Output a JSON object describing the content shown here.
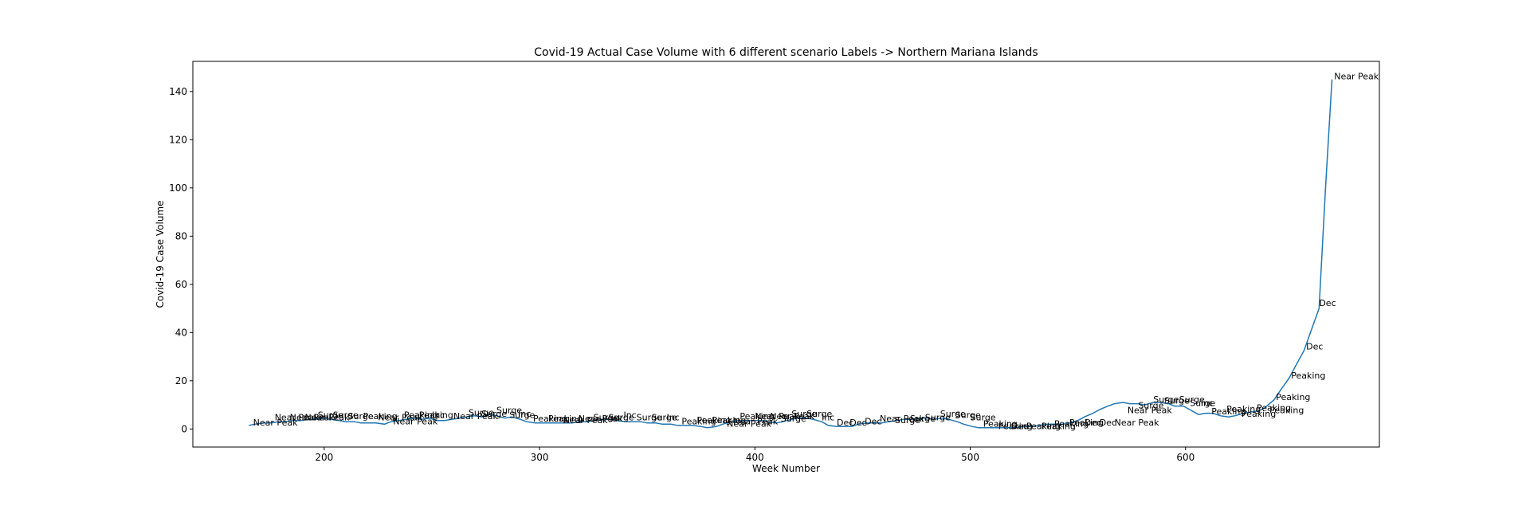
{
  "chart_data": {
    "type": "line",
    "title": "Covid-19 Actual Case Volume with 6 different scenario Labels  -> Northern Mariana Islands",
    "xlabel": "Week Number",
    "ylabel": "Covid-19 Case Volume",
    "xlim": [
      139,
      690
    ],
    "ylim": [
      -7.5,
      152.5
    ],
    "xticks": [
      200,
      300,
      400,
      500,
      600
    ],
    "yticks": [
      0,
      20,
      40,
      60,
      80,
      100,
      120,
      140
    ],
    "grid": false,
    "line_color": "#1f77b4",
    "series": [
      {
        "x": [
          165,
          168,
          172,
          175,
          179,
          182,
          186,
          189,
          193,
          196,
          200,
          203,
          207,
          210,
          214,
          217,
          221,
          224,
          228,
          231,
          235,
          238,
          242,
          245,
          249,
          252,
          256,
          259,
          263,
          266,
          270,
          273,
          277,
          280,
          284,
          287,
          291,
          294,
          298,
          301,
          305,
          308,
          312,
          315,
          319,
          322,
          326,
          329,
          333,
          336,
          340,
          343,
          347,
          350,
          354,
          357,
          361,
          364,
          368,
          371,
          375,
          378,
          382,
          385,
          389,
          392,
          396,
          399,
          403,
          406,
          410,
          413,
          417,
          420,
          424,
          427,
          431,
          434,
          438,
          441,
          445,
          448,
          452,
          455,
          459,
          462,
          466,
          469,
          473,
          476,
          480,
          483,
          487,
          490,
          494,
          497,
          501,
          504,
          508,
          511,
          515,
          518,
          522,
          525,
          529,
          532,
          536,
          539,
          543,
          546,
          550,
          553,
          557,
          560,
          564,
          567,
          571,
          574,
          578,
          581,
          585,
          588,
          592,
          595,
          599,
          602,
          606,
          609,
          613,
          616,
          620,
          623,
          627,
          630,
          634,
          637,
          641,
          644,
          648,
          651,
          655,
          658,
          662,
          665,
          668
        ],
        "y": [
          1.5,
          2.0,
          2.5,
          2.5,
          3.0,
          3.0,
          3.5,
          3.5,
          4.0,
          4.0,
          4.5,
          4.0,
          3.5,
          3.0,
          3.0,
          2.5,
          2.5,
          2.5,
          2.0,
          3.0,
          3.5,
          4.0,
          4.5,
          4.0,
          4.5,
          3.5,
          3.5,
          4.0,
          4.5,
          5.0,
          5.5,
          5.0,
          6.0,
          5.5,
          4.5,
          5.0,
          4.0,
          3.0,
          2.5,
          2.5,
          2.5,
          2.5,
          2.5,
          2.5,
          3.0,
          3.0,
          3.5,
          4.0,
          4.0,
          3.5,
          3.0,
          3.0,
          3.0,
          2.5,
          2.5,
          2.0,
          2.0,
          1.5,
          1.5,
          1.5,
          1.0,
          0.5,
          1.0,
          2.0,
          3.0,
          3.5,
          3.5,
          3.5,
          3.5,
          3.0,
          2.5,
          3.0,
          4.0,
          4.5,
          4.5,
          4.0,
          3.0,
          1.5,
          1.0,
          1.0,
          1.0,
          2.0,
          2.5,
          2.5,
          2.5,
          3.0,
          3.5,
          4.0,
          4.0,
          4.5,
          4.5,
          4.0,
          4.5,
          4.0,
          3.0,
          2.0,
          1.0,
          0.5,
          0.5,
          0.5,
          0.5,
          0.5,
          0.5,
          1.0,
          1.0,
          1.5,
          2.0,
          2.0,
          2.0,
          2.5,
          3.5,
          5.0,
          6.5,
          8.0,
          9.5,
          10.5,
          11.0,
          10.5,
          10.5,
          10.0,
          11.0,
          11.0,
          10.5,
          9.5,
          9.5,
          8.0,
          6.0,
          6.5,
          6.5,
          5.5,
          5.0,
          5.5,
          6.5,
          7.0,
          7.5,
          9.0,
          12.0,
          16.0,
          21.0,
          26.0,
          32.5,
          40.0,
          50.0,
          100.0,
          145.0
        ]
      }
    ],
    "annotations": [
      {
        "x": 167,
        "y": 1.5,
        "text": "Near Peak"
      },
      {
        "x": 177,
        "y": 3.5,
        "text": "Near Peak"
      },
      {
        "x": 184,
        "y": 3.5,
        "text": "Near Peak"
      },
      {
        "x": 191,
        "y": 3.5,
        "text": "Near Peak"
      },
      {
        "x": 197,
        "y": 4.5,
        "text": "Surge"
      },
      {
        "x": 204,
        "y": 4.5,
        "text": "Surge"
      },
      {
        "x": 211,
        "y": 4.0,
        "text": "Surge"
      },
      {
        "x": 218,
        "y": 4.0,
        "text": "Peaking"
      },
      {
        "x": 225,
        "y": 3.5,
        "text": "Near Peak"
      },
      {
        "x": 232,
        "y": 2.0,
        "text": "Near Peak"
      },
      {
        "x": 237,
        "y": 4.5,
        "text": "Peaking"
      },
      {
        "x": 244,
        "y": 4.5,
        "text": "Peaking"
      },
      {
        "x": 250,
        "y": 4.5,
        "text": "Inc"
      },
      {
        "x": 260,
        "y": 4.0,
        "text": "Near Peak"
      },
      {
        "x": 267,
        "y": 5.5,
        "text": "Surge"
      },
      {
        "x": 273,
        "y": 5.0,
        "text": "Surge"
      },
      {
        "x": 280,
        "y": 6.5,
        "text": "Surge"
      },
      {
        "x": 286,
        "y": 4.5,
        "text": "Surge"
      },
      {
        "x": 290,
        "y": 5.0,
        "text": "Inc"
      },
      {
        "x": 297,
        "y": 3.0,
        "text": "Peaking"
      },
      {
        "x": 304,
        "y": 3.0,
        "text": "Peaking"
      },
      {
        "x": 311,
        "y": 2.5,
        "text": "Near Peak"
      },
      {
        "x": 318,
        "y": 3.0,
        "text": "Near Peak"
      },
      {
        "x": 325,
        "y": 3.5,
        "text": "Surge"
      },
      {
        "x": 332,
        "y": 3.5,
        "text": "Surge"
      },
      {
        "x": 339,
        "y": 4.5,
        "text": "Inc"
      },
      {
        "x": 345,
        "y": 3.5,
        "text": "Surge"
      },
      {
        "x": 352,
        "y": 3.5,
        "text": "Surge"
      },
      {
        "x": 359,
        "y": 3.5,
        "text": "Inc"
      },
      {
        "x": 366,
        "y": 2.0,
        "text": "Peaking"
      },
      {
        "x": 373,
        "y": 2.5,
        "text": "Peaking"
      },
      {
        "x": 380,
        "y": 2.5,
        "text": "Peaking"
      },
      {
        "x": 387,
        "y": 1.0,
        "text": "Near Peak"
      },
      {
        "x": 390,
        "y": 2.0,
        "text": "Near Peak"
      },
      {
        "x": 393,
        "y": 4.0,
        "text": "Peaking"
      },
      {
        "x": 400,
        "y": 4.0,
        "text": "Near Peak"
      },
      {
        "x": 407,
        "y": 4.0,
        "text": "Near Peak"
      },
      {
        "x": 412,
        "y": 3.0,
        "text": "Surge"
      },
      {
        "x": 417,
        "y": 5.0,
        "text": "Surge"
      },
      {
        "x": 424,
        "y": 5.0,
        "text": "Surge"
      },
      {
        "x": 431,
        "y": 3.5,
        "text": "Inc"
      },
      {
        "x": 438,
        "y": 1.5,
        "text": "Dec"
      },
      {
        "x": 444,
        "y": 1.5,
        "text": "Dec"
      },
      {
        "x": 451,
        "y": 2.0,
        "text": "Dec"
      },
      {
        "x": 458,
        "y": 3.0,
        "text": "Near Peak"
      },
      {
        "x": 465,
        "y": 2.5,
        "text": "Surge"
      },
      {
        "x": 472,
        "y": 3.0,
        "text": "Surge"
      },
      {
        "x": 479,
        "y": 3.5,
        "text": "Surge"
      },
      {
        "x": 486,
        "y": 5.0,
        "text": "Surge"
      },
      {
        "x": 493,
        "y": 4.5,
        "text": "Surge"
      },
      {
        "x": 500,
        "y": 3.5,
        "text": "Surge"
      },
      {
        "x": 506,
        "y": 1.0,
        "text": "Peaking"
      },
      {
        "x": 513,
        "y": 0.0,
        "text": "Peaking"
      },
      {
        "x": 519,
        "y": 0.0,
        "text": "Dec"
      },
      {
        "x": 526,
        "y": 0.0,
        "text": "Peaking"
      },
      {
        "x": 533,
        "y": 0.0,
        "text": "Peaking"
      },
      {
        "x": 539,
        "y": 1.0,
        "text": "Peaking"
      },
      {
        "x": 546,
        "y": 1.5,
        "text": "Peaking"
      },
      {
        "x": 553,
        "y": 1.5,
        "text": "Dec"
      },
      {
        "x": 560,
        "y": 1.5,
        "text": "Dec"
      },
      {
        "x": 567,
        "y": 1.5,
        "text": "Near Peak"
      },
      {
        "x": 573,
        "y": 6.5,
        "text": "Near Peak"
      },
      {
        "x": 578,
        "y": 8.5,
        "text": "Surge"
      },
      {
        "x": 585,
        "y": 11.0,
        "text": "Surge"
      },
      {
        "x": 590,
        "y": 10.5,
        "text": "Surge"
      },
      {
        "x": 597,
        "y": 11.0,
        "text": "Surge"
      },
      {
        "x": 602,
        "y": 9.5,
        "text": "Surge"
      },
      {
        "x": 607,
        "y": 9.5,
        "text": "Inc"
      },
      {
        "x": 612,
        "y": 6.0,
        "text": "Peaking"
      },
      {
        "x": 619,
        "y": 7.0,
        "text": "Peaking"
      },
      {
        "x": 626,
        "y": 5.0,
        "text": "Peaking"
      },
      {
        "x": 633,
        "y": 7.5,
        "text": "Peaking"
      },
      {
        "x": 639,
        "y": 6.5,
        "text": "Peaking"
      },
      {
        "x": 642,
        "y": 12.0,
        "text": "Peaking"
      },
      {
        "x": 649,
        "y": 21.0,
        "text": "Peaking"
      },
      {
        "x": 656,
        "y": 33.0,
        "text": "Dec"
      },
      {
        "x": 662,
        "y": 51.0,
        "text": "Dec"
      },
      {
        "x": 669,
        "y": 145.0,
        "text": "Near Peak"
      }
    ]
  }
}
